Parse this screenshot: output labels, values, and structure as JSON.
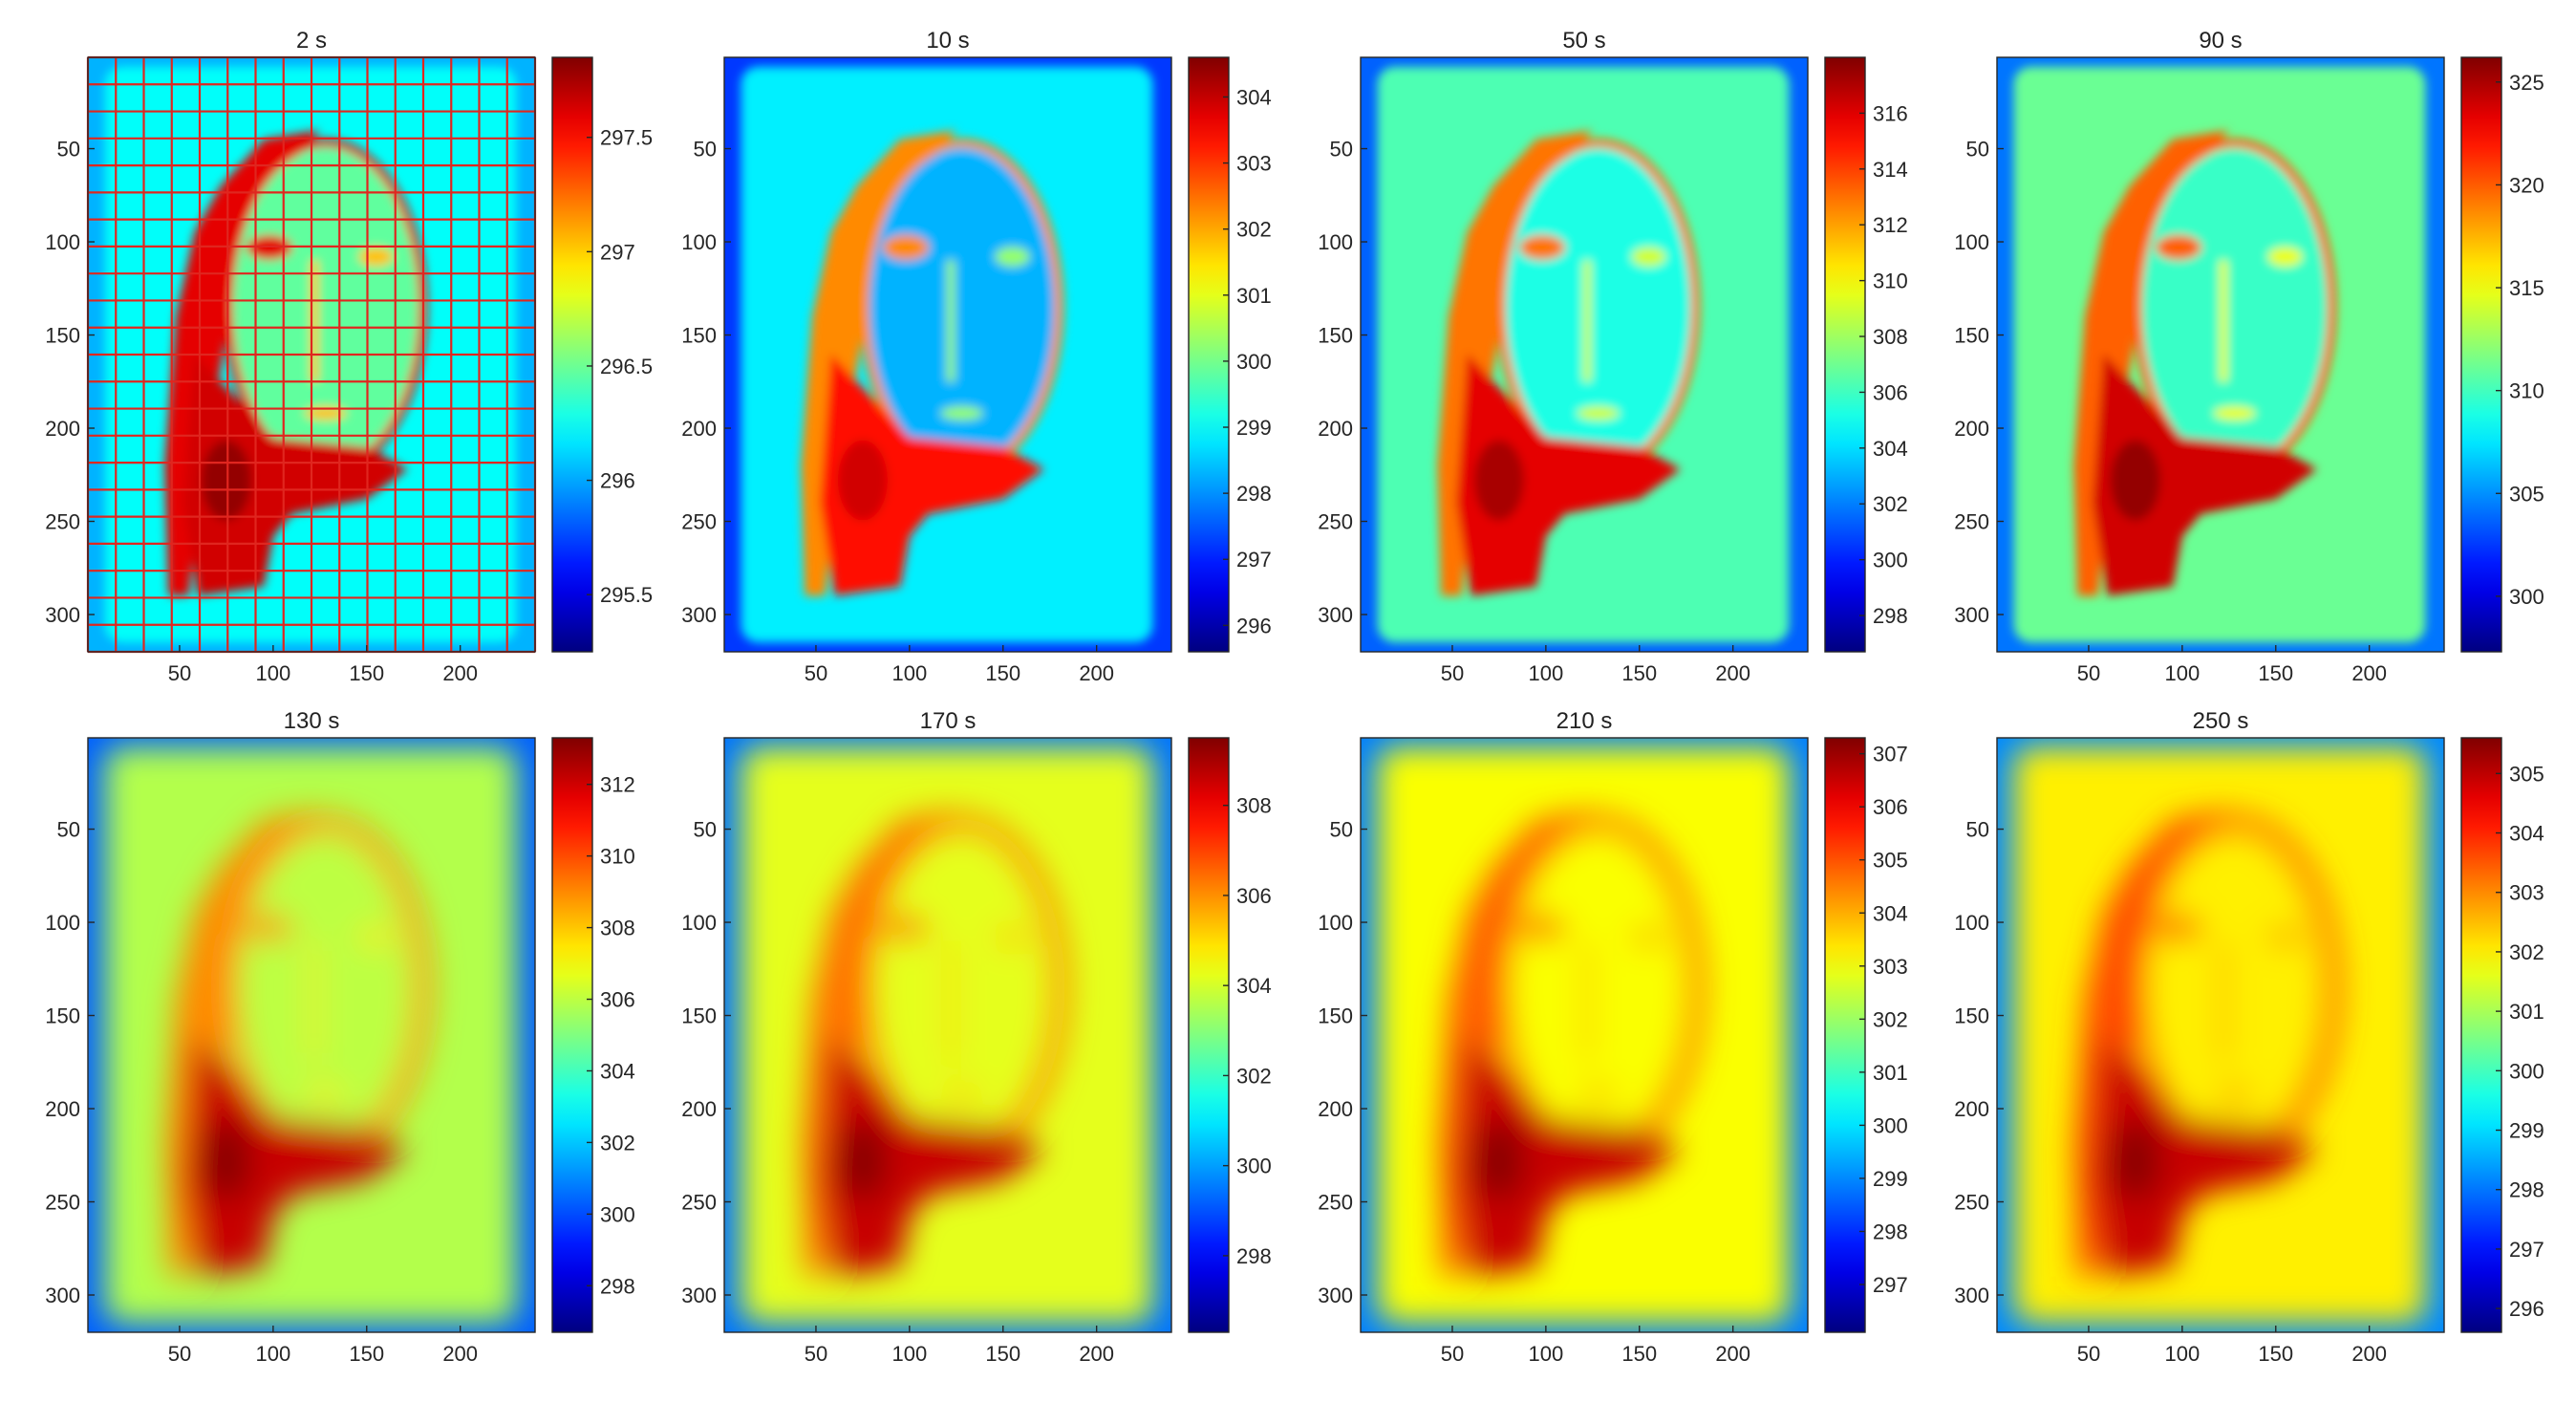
{
  "chart_data": [
    {
      "type": "heatmap",
      "title": "2 s",
      "grid_overlay": true,
      "grid_color": "#e0261f",
      "xticks": [
        50,
        100,
        150,
        200
      ],
      "yticks": [
        50,
        100,
        150,
        200,
        250,
        300
      ],
      "xlim": [
        1,
        240
      ],
      "ylim": [
        1,
        320
      ],
      "colorbar": {
        "ticks": [
          "295.5",
          "296",
          "296.5",
          "297",
          "297.5"
        ],
        "min": 295.25,
        "max": 297.85
      },
      "field": {
        "background": 0.38,
        "face": 0.47,
        "neck": 0.92,
        "outline": 0.9,
        "edge": 0.3,
        "sharp": true
      }
    },
    {
      "type": "heatmap",
      "title": "10 s",
      "xticks": [
        50,
        100,
        150,
        200
      ],
      "yticks": [
        50,
        100,
        150,
        200,
        250,
        300
      ],
      "xlim": [
        1,
        240
      ],
      "ylim": [
        1,
        320
      ],
      "colorbar": {
        "ticks": [
          "296",
          "297",
          "298",
          "299",
          "300",
          "301",
          "302",
          "303",
          "304"
        ],
        "min": 295.6,
        "max": 304.6
      },
      "field": {
        "background": 0.36,
        "face": 0.3,
        "neck": 0.86,
        "outline": 0.74,
        "edge": 0.18,
        "sharp": true
      }
    },
    {
      "type": "heatmap",
      "title": "50 s",
      "xticks": [
        50,
        100,
        150,
        200
      ],
      "yticks": [
        50,
        100,
        150,
        200,
        250,
        300
      ],
      "xlim": [
        1,
        240
      ],
      "ylim": [
        1,
        320
      ],
      "colorbar": {
        "ticks": [
          "298",
          "300",
          "302",
          "304",
          "306",
          "308",
          "310",
          "312",
          "314",
          "316"
        ],
        "min": 296.7,
        "max": 318
      },
      "field": {
        "background": 0.45,
        "face": 0.4,
        "neck": 0.9,
        "outline": 0.76,
        "edge": 0.22,
        "sharp": true
      }
    },
    {
      "type": "heatmap",
      "title": "90 s",
      "xticks": [
        50,
        100,
        150,
        200
      ],
      "yticks": [
        50,
        100,
        150,
        200,
        250,
        300
      ],
      "xlim": [
        1,
        240
      ],
      "ylim": [
        1,
        320
      ],
      "colorbar": {
        "ticks": [
          "300",
          "305",
          "310",
          "315",
          "320",
          "325"
        ],
        "min": 297.3,
        "max": 326.2
      },
      "field": {
        "background": 0.48,
        "face": 0.43,
        "neck": 0.92,
        "outline": 0.78,
        "edge": 0.24,
        "sharp": true
      }
    },
    {
      "type": "heatmap",
      "title": "130 s",
      "xticks": [
        50,
        100,
        150,
        200
      ],
      "yticks": [
        50,
        100,
        150,
        200,
        250,
        300
      ],
      "xlim": [
        1,
        240
      ],
      "ylim": [
        1,
        320
      ],
      "colorbar": {
        "ticks": [
          "298",
          "300",
          "302",
          "304",
          "306",
          "308",
          "310",
          "312"
        ],
        "min": 296.7,
        "max": 313.3
      },
      "field": {
        "background": 0.55,
        "face": 0.56,
        "neck": 0.93,
        "outline": 0.74,
        "edge": 0.22,
        "sharp": false
      }
    },
    {
      "type": "heatmap",
      "title": "170 s",
      "xticks": [
        50,
        100,
        150,
        200
      ],
      "yticks": [
        50,
        100,
        150,
        200,
        250,
        300
      ],
      "xlim": [
        1,
        240
      ],
      "ylim": [
        1,
        320
      ],
      "colorbar": {
        "ticks": [
          "298",
          "300",
          "302",
          "304",
          "306",
          "308"
        ],
        "min": 296.3,
        "max": 309.5
      },
      "field": {
        "background": 0.6,
        "face": 0.6,
        "neck": 0.93,
        "outline": 0.76,
        "edge": 0.24,
        "sharp": false
      }
    },
    {
      "type": "heatmap",
      "title": "210 s",
      "xticks": [
        50,
        100,
        150,
        200
      ],
      "yticks": [
        50,
        100,
        150,
        200,
        250,
        300
      ],
      "xlim": [
        1,
        240
      ],
      "ylim": [
        1,
        320
      ],
      "colorbar": {
        "ticks": [
          "297",
          "298",
          "299",
          "300",
          "301",
          "302",
          "303",
          "304",
          "305",
          "306",
          "307"
        ],
        "min": 296.1,
        "max": 307.3
      },
      "field": {
        "background": 0.62,
        "face": 0.62,
        "neck": 0.93,
        "outline": 0.78,
        "edge": 0.25,
        "sharp": false
      }
    },
    {
      "type": "heatmap",
      "title": "250 s",
      "xticks": [
        50,
        100,
        150,
        200
      ],
      "yticks": [
        50,
        100,
        150,
        200,
        250,
        300
      ],
      "xlim": [
        1,
        240
      ],
      "ylim": [
        1,
        320
      ],
      "colorbar": {
        "ticks": [
          "296",
          "297",
          "298",
          "299",
          "300",
          "301",
          "302",
          "303",
          "304",
          "305"
        ],
        "min": 295.6,
        "max": 305.6
      },
      "field": {
        "background": 0.64,
        "face": 0.64,
        "neck": 0.93,
        "outline": 0.8,
        "edge": 0.26,
        "sharp": false
      }
    }
  ]
}
